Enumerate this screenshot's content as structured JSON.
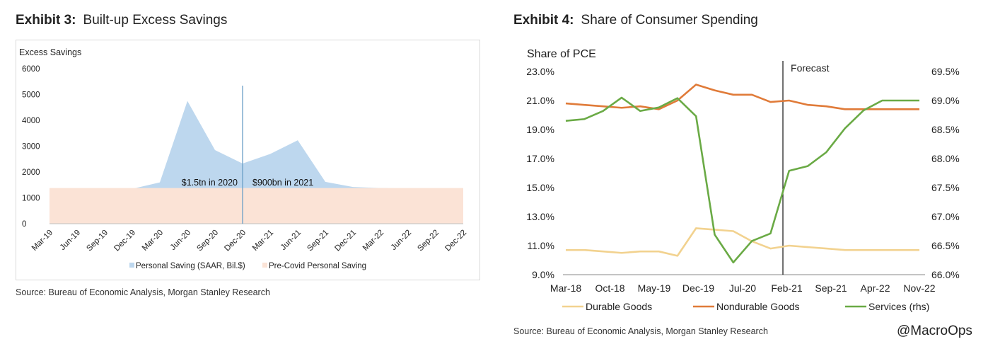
{
  "exhibit3": {
    "label": "Exhibit 3:",
    "title": "Built-up Excess Savings",
    "source": "Source: Bureau of Economic Analysis, Morgan Stanley Research"
  },
  "exhibit4": {
    "label": "Exhibit 4:",
    "title": "Share of Consumer Spending",
    "source": "Source: Bureau of Economic Analysis, Morgan Stanley Research"
  },
  "watermark": "@MacroOps",
  "colors": {
    "saving_fill": "#bdd7ee",
    "precovid_fill": "#fbe3d6",
    "divider": "#6a9fc7",
    "durable": "#f2d28f",
    "nondurable": "#e07b39",
    "services": "#6aaa45"
  },
  "chart_data": [
    {
      "type": "area",
      "ylabel": "Excess Savings",
      "ylim": [
        0,
        6000
      ],
      "yticks": [
        "0",
        "1000",
        "2000",
        "3000",
        "4000",
        "5000",
        "6000"
      ],
      "categories": [
        "Mar-19",
        "Jun-19",
        "Sep-19",
        "Dec-19",
        "Mar-20",
        "Jun-20",
        "Sep-20",
        "Dec-20",
        "Mar-21",
        "Jun-21",
        "Sep-21",
        "Dec-21",
        "Mar-22",
        "Jun-22",
        "Sep-22",
        "Dec-22"
      ],
      "series": [
        {
          "name": "Personal Saving (SAAR, Bil.$)",
          "values": [
            1320,
            1330,
            1340,
            1350,
            1600,
            4750,
            2850,
            2330,
            2700,
            3230,
            1620,
            1420,
            1380,
            1360,
            1350,
            1340
          ]
        },
        {
          "name": "Pre-Covid Personal Saving",
          "values": [
            1380,
            1380,
            1380,
            1380,
            1380,
            1380,
            1380,
            1380,
            1380,
            1380,
            1380,
            1380,
            1380,
            1380,
            1380,
            1380
          ]
        }
      ],
      "divider_at": "Dec-20",
      "annotations": [
        "$1.5tn in 2020",
        "$900bn in 2021"
      ]
    },
    {
      "type": "line",
      "title": "Share of PCE",
      "ylim": [
        9,
        23
      ],
      "y2lim": [
        66,
        69.5
      ],
      "yticks": [
        "9.0%",
        "11.0%",
        "13.0%",
        "15.0%",
        "17.0%",
        "19.0%",
        "21.0%",
        "23.0%"
      ],
      "y2ticks": [
        "66.0%",
        "66.5%",
        "67.0%",
        "67.5%",
        "68.0%",
        "68.5%",
        "69.0%",
        "69.5%"
      ],
      "xticks": [
        "Mar-18",
        "Oct-18",
        "May-19",
        "Dec-19",
        "Jul-20",
        "Feb-21",
        "Sep-21",
        "Apr-22",
        "Nov-22"
      ],
      "x": [
        "Mar-18",
        "Jun-18",
        "Sep-18",
        "Dec-18",
        "Mar-19",
        "Jun-19",
        "Sep-19",
        "Dec-19",
        "Mar-20",
        "Jun-20",
        "Sep-20",
        "Dec-20",
        "Mar-21",
        "Jun-21",
        "Sep-21",
        "Dec-21",
        "Mar-22",
        "Jun-22",
        "Sep-22",
        "Dec-22"
      ],
      "forecast_label": "Forecast",
      "forecast_at": "Feb-21",
      "series": [
        {
          "name": "Durable Goods",
          "axis": "left",
          "values": [
            10.7,
            10.7,
            10.6,
            10.5,
            10.6,
            10.6,
            10.3,
            12.2,
            12.1,
            12.0,
            11.3,
            10.8,
            11.0,
            10.9,
            10.8,
            10.7,
            10.7,
            10.7,
            10.7,
            10.7
          ]
        },
        {
          "name": "Nondurable Goods",
          "axis": "left",
          "values": [
            20.8,
            20.7,
            20.6,
            20.5,
            20.6,
            20.4,
            21.0,
            22.1,
            21.7,
            21.4,
            21.4,
            20.9,
            21.0,
            20.7,
            20.6,
            20.4,
            20.4,
            20.4,
            20.4,
            20.4
          ]
        },
        {
          "name": "Services (rhs)",
          "axis": "right",
          "values": [
            68.65,
            68.68,
            68.82,
            69.05,
            68.82,
            68.88,
            69.04,
            68.73,
            66.69,
            66.21,
            66.58,
            66.71,
            67.79,
            67.87,
            68.11,
            68.52,
            68.83,
            69.0,
            69.0,
            69.0
          ]
        }
      ]
    }
  ]
}
